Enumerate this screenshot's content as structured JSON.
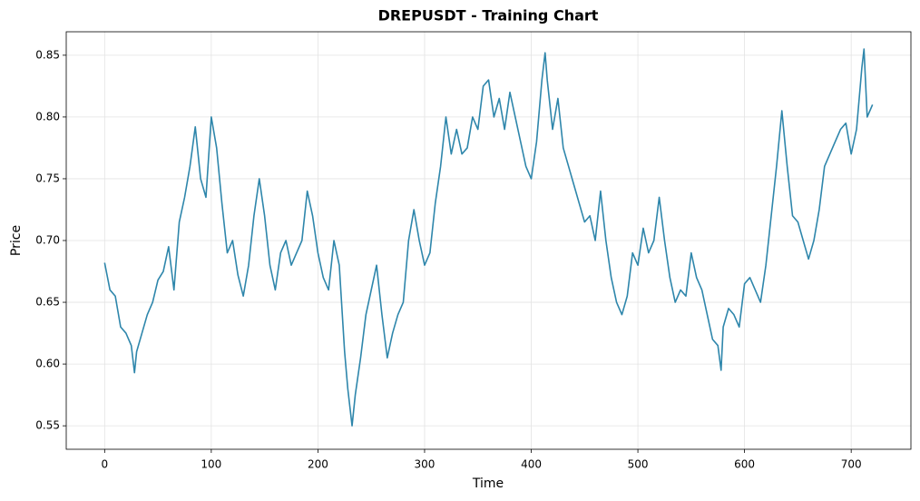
{
  "chart_data": {
    "type": "line",
    "title": "DREPUSDT - Training Chart",
    "x_label": "Time",
    "y_label": "Price",
    "x": [
      0,
      5,
      10,
      15,
      20,
      25,
      28,
      30,
      35,
      40,
      45,
      50,
      55,
      60,
      65,
      70,
      75,
      80,
      85,
      90,
      95,
      100,
      105,
      110,
      115,
      120,
      125,
      130,
      135,
      140,
      145,
      150,
      155,
      160,
      165,
      170,
      175,
      180,
      185,
      190,
      195,
      200,
      205,
      210,
      215,
      220,
      225,
      228,
      232,
      235,
      240,
      245,
      250,
      255,
      260,
      265,
      270,
      275,
      280,
      285,
      290,
      295,
      300,
      305,
      310,
      315,
      320,
      325,
      330,
      335,
      340,
      345,
      350,
      355,
      360,
      365,
      370,
      375,
      380,
      385,
      390,
      395,
      400,
      405,
      410,
      413,
      415,
      420,
      425,
      430,
      435,
      440,
      445,
      450,
      455,
      460,
      465,
      470,
      475,
      480,
      485,
      490,
      495,
      500,
      505,
      510,
      515,
      520,
      525,
      530,
      535,
      540,
      545,
      550,
      555,
      560,
      565,
      570,
      575,
      578,
      580,
      585,
      590,
      595,
      600,
      605,
      610,
      615,
      620,
      625,
      630,
      635,
      640,
      645,
      650,
      655,
      660,
      665,
      670,
      675,
      680,
      685,
      690,
      695,
      700,
      705,
      710,
      712,
      715,
      720
    ],
    "series": [
      {
        "name": "DREPUSDT",
        "color": "#2e86ab",
        "values": [
          0.682,
          0.66,
          0.655,
          0.63,
          0.625,
          0.615,
          0.593,
          0.61,
          0.625,
          0.64,
          0.65,
          0.668,
          0.675,
          0.695,
          0.66,
          0.715,
          0.735,
          0.76,
          0.792,
          0.75,
          0.735,
          0.8,
          0.775,
          0.73,
          0.69,
          0.7,
          0.672,
          0.655,
          0.68,
          0.72,
          0.75,
          0.72,
          0.68,
          0.66,
          0.69,
          0.7,
          0.68,
          0.69,
          0.7,
          0.74,
          0.72,
          0.69,
          0.67,
          0.66,
          0.7,
          0.68,
          0.61,
          0.58,
          0.55,
          0.575,
          0.605,
          0.64,
          0.66,
          0.68,
          0.64,
          0.605,
          0.625,
          0.64,
          0.65,
          0.7,
          0.725,
          0.7,
          0.68,
          0.69,
          0.73,
          0.76,
          0.8,
          0.77,
          0.79,
          0.77,
          0.775,
          0.8,
          0.79,
          0.825,
          0.83,
          0.8,
          0.815,
          0.79,
          0.82,
          0.8,
          0.78,
          0.76,
          0.75,
          0.78,
          0.83,
          0.852,
          0.83,
          0.79,
          0.815,
          0.775,
          0.76,
          0.745,
          0.73,
          0.715,
          0.72,
          0.7,
          0.74,
          0.7,
          0.67,
          0.65,
          0.64,
          0.655,
          0.69,
          0.68,
          0.71,
          0.69,
          0.7,
          0.735,
          0.7,
          0.67,
          0.65,
          0.66,
          0.655,
          0.69,
          0.67,
          0.66,
          0.64,
          0.62,
          0.615,
          0.595,
          0.63,
          0.645,
          0.64,
          0.63,
          0.665,
          0.67,
          0.66,
          0.65,
          0.68,
          0.72,
          0.76,
          0.805,
          0.76,
          0.72,
          0.715,
          0.7,
          0.685,
          0.7,
          0.725,
          0.76,
          0.77,
          0.78,
          0.79,
          0.795,
          0.77,
          0.79,
          0.84,
          0.855,
          0.8,
          0.81
        ]
      }
    ],
    "xlim": [
      -36,
      756
    ],
    "ylim": [
      0.531,
      0.869
    ],
    "xticks": [
      0,
      100,
      200,
      300,
      400,
      500,
      600,
      700
    ],
    "yticks": [
      0.55,
      {
        "value": 0.6,
        "label": "0.60"
      },
      0.65,
      {
        "value": 0.7,
        "label": "0.70"
      },
      0.75,
      {
        "value": 0.8,
        "label": "0.80"
      },
      0.85
    ],
    "grid": true
  }
}
